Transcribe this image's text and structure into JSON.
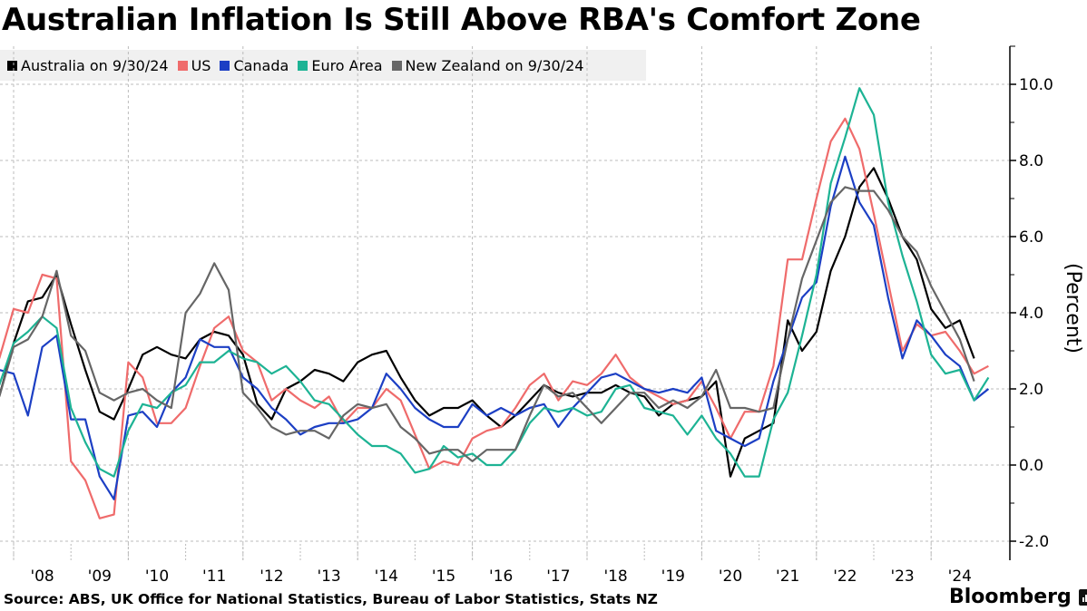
{
  "chart_data": {
    "type": "line",
    "title": "Australian Inflation Is Still Above RBA's Comfort Zone",
    "ylabel": "(Percent)",
    "xlabel": "",
    "ylim": [
      -2.5,
      11
    ],
    "xlim": [
      2007.75,
      2025.3
    ],
    "grid": true,
    "legend_position": "top-left",
    "y_ticks": [
      -2,
      0,
      2,
      4,
      6,
      8,
      10
    ],
    "y_tick_labels": [
      "-2.0",
      "0.0",
      "2.0",
      "4.0",
      "6.0",
      "8.0",
      "10.0"
    ],
    "x_ticks": [
      2008,
      2009,
      2010,
      2011,
      2012,
      2013,
      2014,
      2015,
      2016,
      2017,
      2018,
      2019,
      2020,
      2021,
      2022,
      2023,
      2024
    ],
    "x_tick_labels": [
      "'08",
      "'09",
      "'10",
      "'11",
      "'12",
      "'13",
      "'14",
      "'15",
      "'16",
      "'17",
      "'18",
      "'19",
      "'20",
      "'21",
      "'22",
      "'23",
      "'24"
    ],
    "x_start": 2007.75,
    "x_step": 0.25,
    "series": [
      {
        "name": "Australia on 9/30/24",
        "color": "#000000",
        "values": [
          1.8,
          3.2,
          4.3,
          4.4,
          5.0,
          3.7,
          2.5,
          1.4,
          1.2,
          2.0,
          2.9,
          3.1,
          2.9,
          2.8,
          3.3,
          3.5,
          3.4,
          2.9,
          1.6,
          1.2,
          2.0,
          2.2,
          2.5,
          2.4,
          2.2,
          2.7,
          2.9,
          3.0,
          2.3,
          1.7,
          1.3,
          1.5,
          1.5,
          1.7,
          1.3,
          1.0,
          1.3,
          1.7,
          2.1,
          1.9,
          1.8,
          1.9,
          1.9,
          2.1,
          1.9,
          1.8,
          1.3,
          1.6,
          1.7,
          1.8,
          2.2,
          -0.3,
          0.7,
          0.9,
          1.1,
          3.8,
          3.0,
          3.5,
          5.1,
          6.0,
          7.3,
          7.8,
          7.0,
          6.0,
          5.4,
          4.1,
          3.6,
          3.8,
          2.8
        ]
      },
      {
        "name": "US",
        "color": "#ef6b6b",
        "values": [
          2.8,
          4.1,
          4.0,
          5.0,
          4.9,
          0.1,
          -0.4,
          -1.4,
          -1.3,
          2.7,
          2.3,
          1.1,
          1.1,
          1.5,
          2.6,
          3.6,
          3.9,
          3.0,
          2.7,
          1.7,
          2.0,
          1.7,
          1.5,
          1.8,
          1.1,
          1.5,
          1.5,
          2.0,
          1.7,
          0.8,
          -0.1,
          0.1,
          0.0,
          0.7,
          0.9,
          1.0,
          1.5,
          2.1,
          2.4,
          1.7,
          2.2,
          2.1,
          2.4,
          2.9,
          2.3,
          2.0,
          1.8,
          1.6,
          1.7,
          2.2,
          1.5,
          0.7,
          1.4,
          1.4,
          2.6,
          5.4,
          5.4,
          7.0,
          8.5,
          9.1,
          8.3,
          6.6,
          4.8,
          3.0,
          3.7,
          3.4,
          3.5,
          3.0,
          2.4,
          2.6
        ]
      },
      {
        "name": "Canada",
        "color": "#1c3fc4",
        "values": [
          2.5,
          2.4,
          1.3,
          3.1,
          3.4,
          1.2,
          1.2,
          -0.3,
          -0.9,
          1.3,
          1.4,
          1.0,
          1.9,
          2.3,
          3.3,
          3.1,
          3.1,
          2.3,
          2.0,
          1.5,
          1.2,
          0.8,
          1.0,
          1.1,
          1.1,
          1.2,
          1.5,
          2.4,
          2.0,
          1.5,
          1.2,
          1.0,
          1.0,
          1.6,
          1.3,
          1.5,
          1.3,
          1.5,
          1.6,
          1.0,
          1.5,
          1.9,
          2.3,
          2.4,
          2.2,
          2.0,
          1.9,
          2.0,
          1.9,
          2.3,
          0.9,
          0.7,
          0.5,
          0.7,
          2.2,
          3.3,
          4.4,
          4.8,
          6.8,
          8.1,
          6.9,
          6.3,
          4.4,
          2.8,
          3.8,
          3.4,
          2.9,
          2.6,
          1.7,
          2.0
        ]
      },
      {
        "name": "Euro Area",
        "color": "#1db394",
        "values": [
          2.1,
          3.2,
          3.5,
          3.9,
          3.6,
          1.5,
          0.6,
          -0.1,
          -0.3,
          0.9,
          1.6,
          1.5,
          1.9,
          2.1,
          2.7,
          2.7,
          3.0,
          2.8,
          2.7,
          2.4,
          2.6,
          2.2,
          1.7,
          1.6,
          1.2,
          0.8,
          0.5,
          0.5,
          0.3,
          -0.2,
          -0.1,
          0.5,
          0.2,
          0.3,
          0.0,
          0.0,
          0.4,
          1.1,
          1.5,
          1.4,
          1.5,
          1.3,
          1.4,
          2.0,
          2.1,
          1.5,
          1.4,
          1.3,
          0.8,
          1.3,
          0.7,
          0.3,
          -0.3,
          -0.3,
          1.2,
          1.9,
          3.4,
          5.0,
          7.4,
          8.6,
          9.9,
          9.2,
          6.9,
          5.5,
          4.3,
          2.9,
          2.4,
          2.5,
          1.7,
          2.3
        ]
      },
      {
        "name": "New Zealand on 9/30/24",
        "color": "#666666",
        "values": [
          1.8,
          3.1,
          3.3,
          3.9,
          5.1,
          3.4,
          3.0,
          1.9,
          1.7,
          1.9,
          2.0,
          1.7,
          1.5,
          4.0,
          4.5,
          5.3,
          4.6,
          1.9,
          1.5,
          1.0,
          0.8,
          0.9,
          0.9,
          0.7,
          1.3,
          1.6,
          1.5,
          1.6,
          1.0,
          0.7,
          0.3,
          0.4,
          0.4,
          0.1,
          0.4,
          0.4,
          0.4,
          1.3,
          2.1,
          1.8,
          1.9,
          1.5,
          1.1,
          1.5,
          1.9,
          1.9,
          1.5,
          1.7,
          1.5,
          1.8,
          2.5,
          1.5,
          1.5,
          1.4,
          1.5,
          3.3,
          4.9,
          5.9,
          6.9,
          7.3,
          7.2,
          7.2,
          6.7,
          6.0,
          5.6,
          4.7,
          4.0,
          3.3,
          2.2
        ]
      }
    ]
  },
  "footer": {
    "source": "Source: ABS, UK Office for National Statistics, Bureau of Labor Statistics, Stats NZ",
    "brand": "Bloomberg"
  }
}
